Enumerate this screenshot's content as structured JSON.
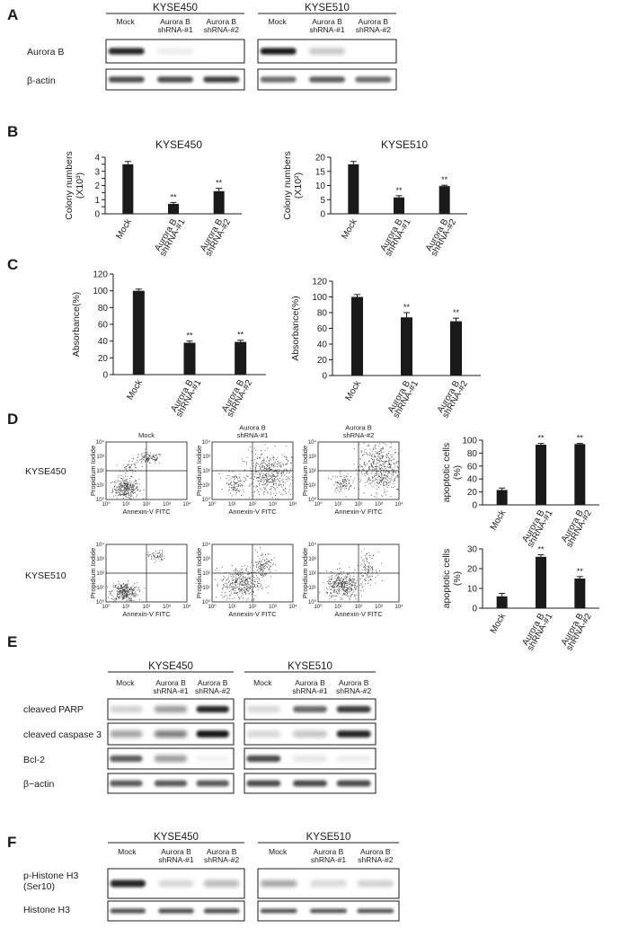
{
  "panels": {
    "A": {
      "letter": "A",
      "cell_lines": [
        "KYSE450",
        "KYSE510"
      ],
      "lanes": [
        [
          "Mock"
        ],
        [
          "Aurora B",
          "shRNA-#1"
        ],
        [
          "Aurora B",
          "shRNA-#2"
        ]
      ],
      "rows": [
        "Aurora B",
        "β-actin"
      ],
      "band_intensity": {
        "KYSE450": [
          [
            0.95,
            0.15,
            0.0
          ],
          [
            0.85,
            0.85,
            0.9
          ]
        ],
        "KYSE510": [
          [
            1.0,
            0.4,
            0.0
          ],
          [
            0.75,
            0.8,
            0.75
          ]
        ]
      }
    },
    "B": {
      "letter": "B"
    },
    "C": {
      "letter": "C"
    },
    "D": {
      "letter": "D",
      "row_labels": [
        "KYSE450",
        "KYSE510"
      ],
      "flow_titles": [
        [
          "Mock"
        ],
        [
          "Aurora B",
          "shRNA-#1"
        ],
        [
          "Aurora B",
          "shRNA-#2"
        ]
      ],
      "flow_xlabel": "Annexin-V FITC",
      "flow_ylabel": "Propidium Iodide",
      "flow_ticks": [
        "10⁰",
        "10¹",
        "10²",
        "10³",
        "10⁴"
      ]
    },
    "E": {
      "letter": "E",
      "cell_lines": [
        "KYSE450",
        "KYSE510"
      ],
      "lanes": [
        [
          "Mock"
        ],
        [
          "Aurora B",
          "shRNA-#1"
        ],
        [
          "Aurora B",
          "shRNA-#2"
        ]
      ],
      "rows": [
        "cleaved PARP",
        "cleaved caspase 3",
        "Bcl-2",
        "β−actin"
      ],
      "band_intensity": {
        "KYSE450": [
          [
            0.35,
            0.6,
            0.95
          ],
          [
            0.55,
            0.7,
            1.0
          ],
          [
            0.8,
            0.6,
            0.1
          ],
          [
            0.8,
            0.8,
            0.8
          ]
        ],
        "KYSE510": [
          [
            0.3,
            0.75,
            0.9
          ],
          [
            0.3,
            0.4,
            0.95
          ],
          [
            0.85,
            0.2,
            0.15
          ],
          [
            0.85,
            0.85,
            0.85
          ]
        ]
      }
    },
    "F": {
      "letter": "F",
      "cell_lines": [
        "KYSE450",
        "KYSE510"
      ],
      "lanes": [
        [
          "Mock"
        ],
        [
          "Aurora B",
          "shRNA-#1"
        ],
        [
          "Aurora B",
          "shRNA-#2"
        ]
      ],
      "rows": [
        [
          "p-Histone H3",
          "(Ser10)"
        ],
        [
          "Histone H3"
        ]
      ],
      "band_intensity": {
        "KYSE450": [
          [
            0.95,
            0.3,
            0.45
          ],
          [
            0.85,
            0.85,
            0.85
          ]
        ],
        "KYSE510": [
          [
            0.55,
            0.3,
            0.35
          ],
          [
            0.85,
            0.85,
            0.85
          ]
        ]
      }
    }
  },
  "chart_data": [
    {
      "panel": "B",
      "type": "bar",
      "title": "KYSE450",
      "categories": [
        [
          "Mock"
        ],
        [
          "Aurora B",
          "shRNA-#1"
        ],
        [
          "Aurora B",
          "shRNA-#2"
        ]
      ],
      "values": [
        3.5,
        0.7,
        1.6
      ],
      "errors": [
        0.2,
        0.1,
        0.2
      ],
      "significance": [
        "",
        "**",
        "**"
      ],
      "ylabel": [
        "Colony numbers",
        "(X10³)"
      ],
      "ylim": [
        0,
        4
      ],
      "yticks": [
        0,
        0.5,
        1,
        1.5,
        2,
        2.5,
        3,
        3.5,
        4
      ],
      "yticklabels": [
        "0",
        "",
        "1",
        "",
        "2",
        "",
        "3",
        "",
        "4"
      ]
    },
    {
      "panel": "B",
      "type": "bar",
      "title": "KYSE510",
      "categories": [
        [
          "Mock"
        ],
        [
          "Aurora B",
          "shRNA-#1"
        ],
        [
          "Aurora B",
          "shRNA-#2"
        ]
      ],
      "values": [
        17.5,
        5.8,
        9.8
      ],
      "errors": [
        1.0,
        0.6,
        0.3
      ],
      "significance": [
        "",
        "**",
        "**"
      ],
      "ylabel": [
        "Colony numbers",
        "(X10²)"
      ],
      "ylim": [
        0,
        20
      ],
      "yticks": [
        0,
        5,
        10,
        15,
        20
      ],
      "yticklabels": [
        "0",
        "5",
        "10",
        "15",
        "20"
      ]
    },
    {
      "panel": "C",
      "type": "bar",
      "title": "",
      "categories": [
        [
          "Mock"
        ],
        [
          "Aurora B",
          "shRNA-#1"
        ],
        [
          "Aurora B",
          "shRNA-#2"
        ]
      ],
      "values": [
        100,
        38,
        39
      ],
      "errors": [
        2,
        2,
        2
      ],
      "significance": [
        "",
        "**",
        "**"
      ],
      "ylabel": [
        "Absorbance(%)"
      ],
      "ylim": [
        0,
        120
      ],
      "yticks": [
        0,
        20,
        40,
        60,
        80,
        100,
        120
      ],
      "yticklabels": [
        "0",
        "20",
        "40",
        "60",
        "80",
        "100",
        "120"
      ]
    },
    {
      "panel": "C",
      "type": "bar",
      "title": "",
      "categories": [
        [
          "Mock"
        ],
        [
          "Aurora B",
          "shRNA-#1"
        ],
        [
          "Aurora B",
          "shRNA-#2"
        ]
      ],
      "values": [
        100,
        74,
        69
      ],
      "errors": [
        3,
        6,
        4
      ],
      "significance": [
        "",
        "**",
        "**"
      ],
      "ylabel": [
        "Absorbance(%)"
      ],
      "ylim": [
        0,
        120
      ],
      "yticks": [
        0,
        20,
        40,
        60,
        80,
        100,
        120
      ],
      "yticklabels": [
        "0",
        "20",
        "40",
        "60",
        "80",
        "100",
        "120"
      ]
    },
    {
      "panel": "D",
      "type": "bar",
      "title": "",
      "categories": [
        [
          "Mock"
        ],
        [
          "Aurora B",
          "shRNA-#1"
        ],
        [
          "Aurora B",
          "shRNA-#2"
        ]
      ],
      "values": [
        23,
        93,
        94
      ],
      "errors": [
        3,
        2,
        1
      ],
      "significance": [
        "",
        "**",
        "**"
      ],
      "ylabel": [
        "apoptotic cells",
        "(%)"
      ],
      "ylim": [
        0,
        100
      ],
      "yticks": [
        0,
        20,
        40,
        60,
        80,
        100
      ],
      "yticklabels": [
        "0",
        "20",
        "40",
        "60",
        "80",
        "100"
      ]
    },
    {
      "panel": "D",
      "type": "bar",
      "title": "",
      "categories": [
        [
          "Mock"
        ],
        [
          "Aurora B",
          "shRNA-#1"
        ],
        [
          "Aurora B",
          "shRNA-#2"
        ]
      ],
      "values": [
        6,
        26,
        15
      ],
      "errors": [
        1.5,
        1,
        1
      ],
      "significance": [
        "",
        "**",
        "**"
      ],
      "ylabel": [
        "apoptotic cells",
        "(%)"
      ],
      "ylim": [
        0,
        30
      ],
      "yticks": [
        0,
        10,
        20,
        30
      ],
      "yticklabels": [
        "0",
        "10",
        "20",
        "30"
      ]
    }
  ]
}
